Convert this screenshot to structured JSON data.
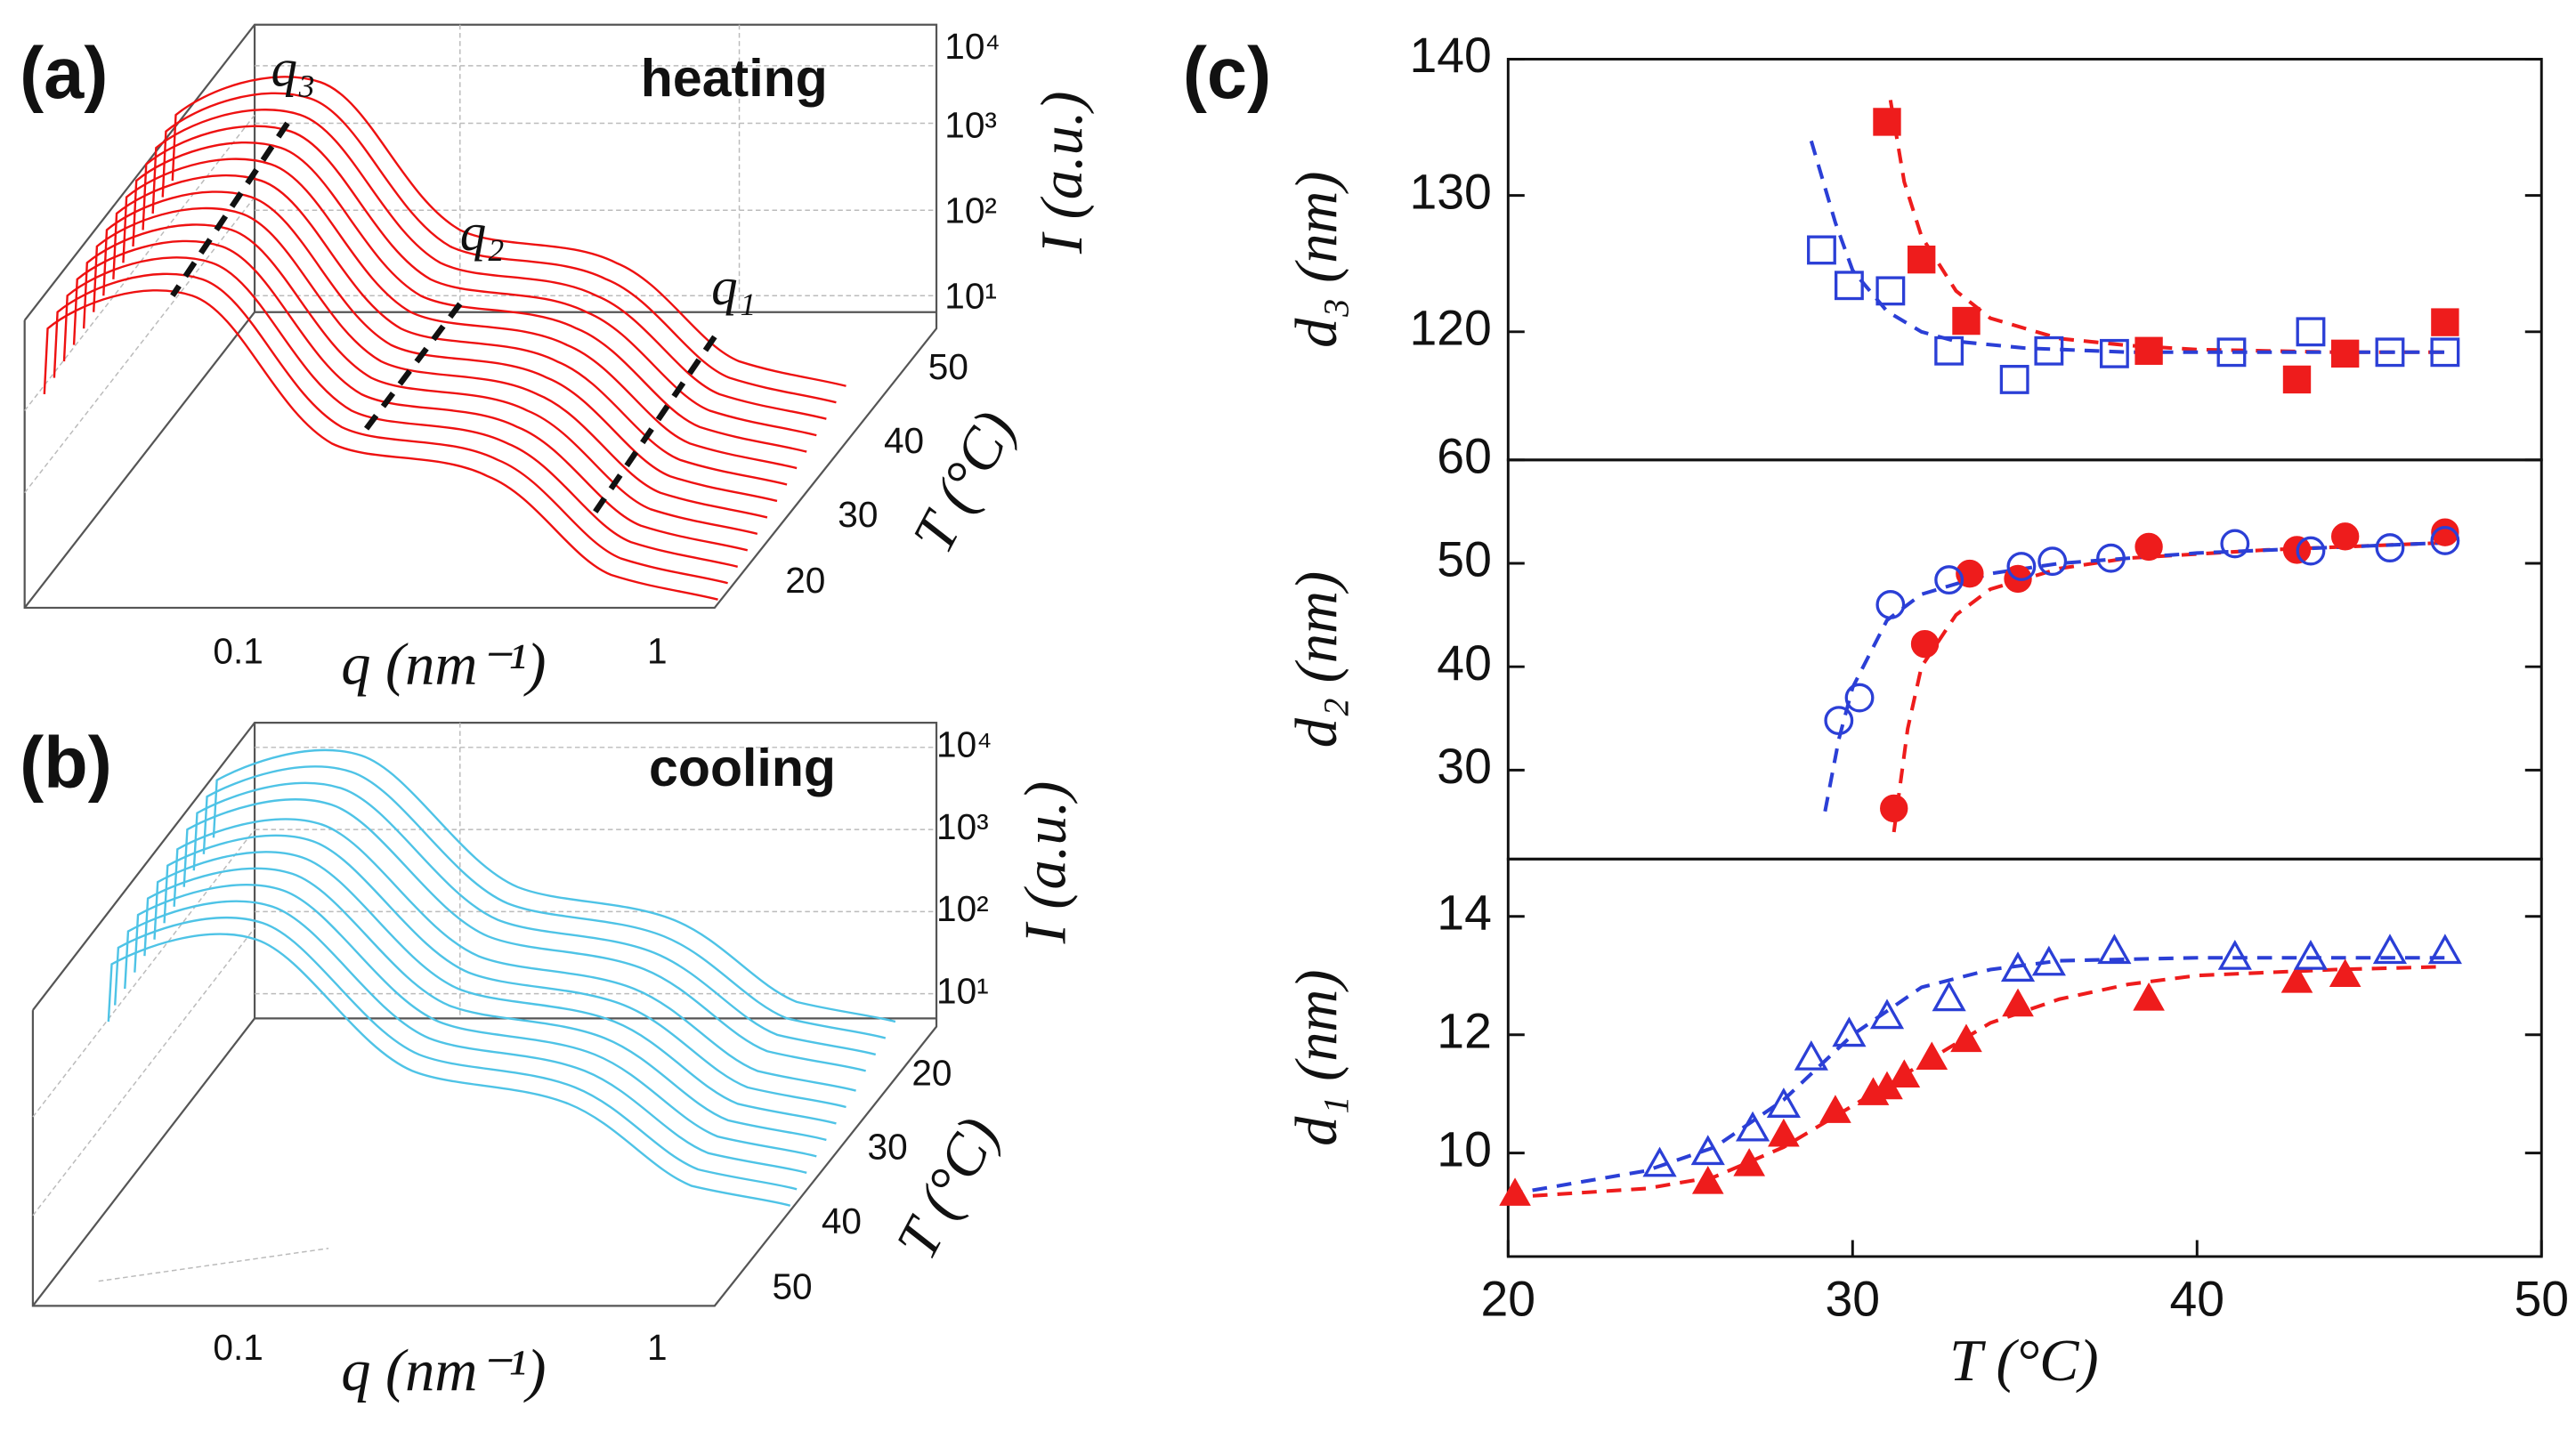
{
  "panel_a": {
    "label": "(a)",
    "annotation": "heating",
    "peak_labels": [
      "q₃",
      "q₂",
      "q₁"
    ],
    "zticks": [
      "10⁴",
      "10³",
      "10²",
      "10¹"
    ],
    "z_label": "I (a.u.)",
    "tticks": [
      "50",
      "40",
      "30",
      "20"
    ],
    "t_label": "T (°C)",
    "xticks": [
      "0.1",
      "1"
    ],
    "x_label": "q (nm⁻¹)"
  },
  "panel_b": {
    "label": "(b)",
    "annotation": "cooling",
    "zticks": [
      "10⁴",
      "10³",
      "10²",
      "10¹"
    ],
    "z_label": "I (a.u.)",
    "tticks": [
      "20",
      "30",
      "40",
      "50"
    ],
    "t_label": "T (°C)",
    "xticks": [
      "0.1",
      "1"
    ],
    "x_label": "q (nm⁻¹)"
  },
  "chart_data": {
    "type": "scatter",
    "label": "(c)",
    "xlabel": "T (°C)",
    "xlim": [
      20,
      50
    ],
    "xticks": [
      20,
      30,
      40,
      50
    ],
    "panels": [
      {
        "ylabel": "d₃ (nm)",
        "ylim": [
          110.6,
          140
        ],
        "yticks": [
          120,
          130,
          140
        ],
        "series": [
          {
            "marker": "square",
            "filled": true,
            "color": "#ee1c1c",
            "x": [
              31.0,
              32.0,
              33.3,
              38.6,
              42.9,
              44.3,
              47.2
            ],
            "values": [
              135.4,
              125.3,
              120.8,
              118.6,
              116.5,
              118.4,
              120.7
            ]
          },
          {
            "marker": "square",
            "filled": false,
            "color": "#2b3fd6",
            "x": [
              29.1,
              29.9,
              31.1,
              32.8,
              34.7,
              35.7,
              37.6,
              41.0,
              43.3,
              45.6,
              47.2
            ],
            "values": [
              126.0,
              123.4,
              123.0,
              118.6,
              116.5,
              118.6,
              118.4,
              118.5,
              120.0,
              118.5,
              118.5
            ]
          }
        ],
        "fits": [
          {
            "color": "#ee1c1c",
            "x": [
              31.1,
              31.5,
              32,
              33,
              34,
              36,
              38,
              40,
              44,
              47.2
            ],
            "values": [
              137,
              131,
              127,
              123,
              121,
              119.5,
              119,
              118.7,
              118.5,
              118.5
            ]
          },
          {
            "color": "#2b3fd6",
            "x": [
              28.8,
              29.5,
              30,
              31,
              32,
              33,
              35,
              38,
              47.2
            ],
            "values": [
              134,
              128,
              124.5,
              121.5,
              120,
              119.3,
              118.8,
              118.5,
              118.5
            ]
          }
        ]
      },
      {
        "ylabel": "d₂ (nm)",
        "ylim": [
          21.4,
          60
        ],
        "yticks": [
          30,
          40,
          50,
          60
        ],
        "series": [
          {
            "marker": "circle",
            "filled": true,
            "color": "#ee1c1c",
            "x": [
              31.2,
              32.1,
              33.4,
              34.8,
              38.6,
              42.9,
              44.3,
              47.2
            ],
            "values": [
              26.3,
              42.2,
              49.0,
              48.5,
              51.6,
              51.3,
              52.6,
              53.0
            ]
          },
          {
            "marker": "circle",
            "filled": false,
            "color": "#2b3fd6",
            "x": [
              29.6,
              30.2,
              31.1,
              32.8,
              34.9,
              35.8,
              37.5,
              41.1,
              43.3,
              45.6,
              47.2
            ],
            "values": [
              34.8,
              37.0,
              46.0,
              48.4,
              49.7,
              50.2,
              50.5,
              51.9,
              51.2,
              51.5,
              52.2
            ]
          }
        ],
        "fits": [
          {
            "color": "#ee1c1c",
            "x": [
              31.2,
              31.6,
              32,
              33,
              34,
              36,
              38,
              42,
              47.2
            ],
            "values": [
              24,
              34,
              40,
              45,
              47.5,
              49.5,
              50.5,
              51.3,
              52
            ]
          },
          {
            "color": "#2b3fd6",
            "x": [
              29.2,
              29.6,
              30,
              31,
              32,
              34,
              36,
              40,
              47.2
            ],
            "values": [
              26,
              33,
              38,
              44.5,
              47,
              49,
              50,
              51,
              52
            ]
          }
        ]
      },
      {
        "ylabel": "d₁ (nm)",
        "ylim": [
          8.25,
          14.97
        ],
        "yticks": [
          10,
          12,
          14
        ],
        "series": [
          {
            "marker": "triangle",
            "filled": true,
            "color": "#ee1c1c",
            "x": [
              20.2,
              25.8,
              27.0,
              28.0,
              29.5,
              30.6,
              31.0,
              31.5,
              32.3,
              33.3,
              34.8,
              38.6,
              42.9,
              44.3
            ],
            "values": [
              9.3,
              9.5,
              9.8,
              10.3,
              10.7,
              11.0,
              11.1,
              11.3,
              11.6,
              11.9,
              12.5,
              12.6,
              12.9,
              13.0
            ]
          },
          {
            "marker": "triangle",
            "filled": false,
            "color": "#2b3fd6",
            "x": [
              24.4,
              25.8,
              27.1,
              28.0,
              28.8,
              29.9,
              31.0,
              32.8,
              34.8,
              35.7,
              37.6,
              41.1,
              43.3,
              45.6,
              47.2
            ],
            "values": [
              9.8,
              10.0,
              10.4,
              10.8,
              11.6,
              12.0,
              12.3,
              12.6,
              13.1,
              13.2,
              13.4,
              13.3,
              13.3,
              13.4,
              13.4
            ]
          }
        ],
        "fits": [
          {
            "color": "#ee1c1c",
            "x": [
              20,
              24,
              26,
              28,
              30,
              32,
              34,
              36,
              38,
              40,
              44,
              47.2
            ],
            "values": [
              9.25,
              9.4,
              9.6,
              10.1,
              10.8,
              11.5,
              12.2,
              12.6,
              12.85,
              13.0,
              13.1,
              13.15
            ]
          },
          {
            "color": "#2b3fd6",
            "x": [
              20,
              24,
              26,
              28,
              30,
              32,
              34,
              36,
              40,
              47.2
            ],
            "values": [
              9.3,
              9.7,
              10.1,
              10.9,
              12.0,
              12.8,
              13.1,
              13.25,
              13.3,
              13.3
            ]
          }
        ]
      }
    ]
  }
}
